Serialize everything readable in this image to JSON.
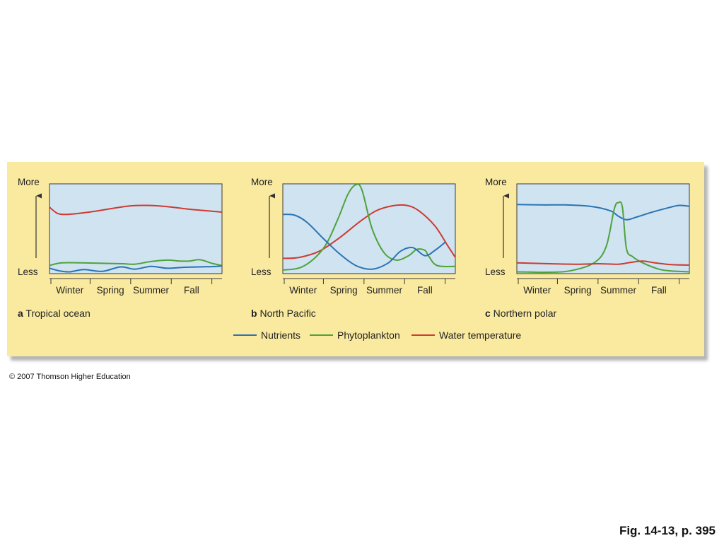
{
  "copyright": "© 2007 Thomson Higher Education",
  "figure_ref": "Fig. 14-13, p. 395",
  "colors": {
    "nutrients": "#2a74b3",
    "phytoplankton": "#4fa23a",
    "water_temperature": "#cf3a30",
    "panel_background": "#faeaa0",
    "plot_background": "#cfe3f1"
  },
  "legend": [
    {
      "key": "nutrients",
      "label": "Nutrients"
    },
    {
      "key": "phytoplankton",
      "label": "Phytoplankton"
    },
    {
      "key": "water_temperature",
      "label": "Water temperature"
    }
  ],
  "chart_data": [
    {
      "type": "line",
      "letter": "a",
      "caption": "Tropical ocean",
      "ylabel_top": "More",
      "ylabel_bottom": "Less",
      "categories": [
        "Winter",
        "Spring",
        "Summer",
        "Fall"
      ],
      "xlim": [
        0,
        4.25
      ],
      "ylim": [
        0,
        10
      ],
      "series": [
        {
          "key": "water_temperature",
          "x": [
            0,
            0.2,
            0.45,
            0.8,
            1.2,
            1.6,
            2.0,
            2.4,
            2.8,
            3.2,
            3.6,
            4.0,
            4.25
          ],
          "y": [
            7.4,
            6.7,
            6.6,
            6.75,
            7.0,
            7.3,
            7.55,
            7.6,
            7.5,
            7.3,
            7.1,
            6.95,
            6.85
          ]
        },
        {
          "key": "phytoplankton",
          "x": [
            0,
            0.3,
            0.8,
            1.3,
            1.8,
            2.1,
            2.5,
            2.9,
            3.2,
            3.45,
            3.7,
            4.0,
            4.25
          ],
          "y": [
            0.9,
            1.2,
            1.2,
            1.15,
            1.1,
            1.05,
            1.35,
            1.5,
            1.4,
            1.4,
            1.55,
            1.15,
            0.9
          ]
        },
        {
          "key": "nutrients",
          "x": [
            0,
            0.25,
            0.5,
            0.85,
            1.3,
            1.75,
            2.1,
            2.5,
            2.9,
            3.3,
            3.7,
            4.0,
            4.25
          ],
          "y": [
            0.6,
            0.3,
            0.2,
            0.45,
            0.25,
            0.75,
            0.5,
            0.8,
            0.6,
            0.7,
            0.75,
            0.78,
            0.85
          ]
        }
      ]
    },
    {
      "type": "line",
      "letter": "b",
      "caption": "North Pacific",
      "ylabel_top": "More",
      "ylabel_bottom": "Less",
      "categories": [
        "Winter",
        "Spring",
        "Summer",
        "Fall"
      ],
      "xlim": [
        0,
        4.25
      ],
      "ylim": [
        0,
        10
      ],
      "series": [
        {
          "key": "water_temperature",
          "x": [
            0,
            0.4,
            0.9,
            1.4,
            1.9,
            2.3,
            2.7,
            3.05,
            3.35,
            3.75,
            4.05,
            4.25
          ],
          "y": [
            1.7,
            1.8,
            2.5,
            4.0,
            5.8,
            7.0,
            7.55,
            7.6,
            7.0,
            5.3,
            3.2,
            1.8
          ]
        },
        {
          "key": "phytoplankton",
          "x": [
            0,
            0.5,
            1.0,
            1.35,
            1.6,
            1.8,
            1.95,
            2.2,
            2.5,
            2.8,
            3.1,
            3.3,
            3.5,
            3.6,
            3.8,
            4.25
          ],
          "y": [
            0.4,
            0.8,
            2.8,
            6.0,
            8.8,
            9.9,
            9.3,
            5.0,
            2.3,
            1.5,
            2.0,
            2.7,
            2.6,
            1.9,
            0.9,
            0.8
          ]
        },
        {
          "key": "nutrients",
          "x": [
            0,
            0.3,
            0.6,
            1.0,
            1.4,
            1.8,
            2.2,
            2.6,
            2.9,
            3.2,
            3.5,
            3.75,
            4.0
          ],
          "y": [
            6.6,
            6.5,
            5.7,
            3.9,
            2.2,
            0.9,
            0.5,
            1.2,
            2.5,
            2.9,
            2.0,
            2.6,
            3.5
          ]
        }
      ]
    },
    {
      "type": "line",
      "letter": "c",
      "caption": "Northern polar",
      "ylabel_top": "More",
      "ylabel_bottom": "Less",
      "categories": [
        "Winter",
        "Spring",
        "Summer",
        "Fall"
      ],
      "xlim": [
        0,
        4.25
      ],
      "ylim": [
        0,
        10
      ],
      "series": [
        {
          "key": "nutrients",
          "x": [
            0,
            0.6,
            1.2,
            1.8,
            2.3,
            2.5,
            2.7,
            2.95,
            3.3,
            3.7,
            4.0,
            4.25
          ],
          "y": [
            7.7,
            7.65,
            7.65,
            7.5,
            7.0,
            6.4,
            6.0,
            6.3,
            6.8,
            7.3,
            7.6,
            7.5
          ]
        },
        {
          "key": "phytoplankton",
          "x": [
            0,
            0.7,
            1.3,
            1.9,
            2.2,
            2.4,
            2.5,
            2.6,
            2.7,
            2.85,
            3.1,
            3.5,
            3.8,
            4.25
          ],
          "y": [
            0.2,
            0.15,
            0.3,
            1.2,
            3.0,
            7.2,
            7.9,
            7.4,
            2.8,
            1.9,
            1.2,
            0.5,
            0.3,
            0.2
          ]
        },
        {
          "key": "water_temperature",
          "x": [
            0,
            0.8,
            1.5,
            2.0,
            2.5,
            2.8,
            3.1,
            3.4,
            3.8,
            4.25
          ],
          "y": [
            1.2,
            1.1,
            1.05,
            1.1,
            1.05,
            1.25,
            1.4,
            1.2,
            1.0,
            0.95
          ]
        }
      ]
    }
  ]
}
